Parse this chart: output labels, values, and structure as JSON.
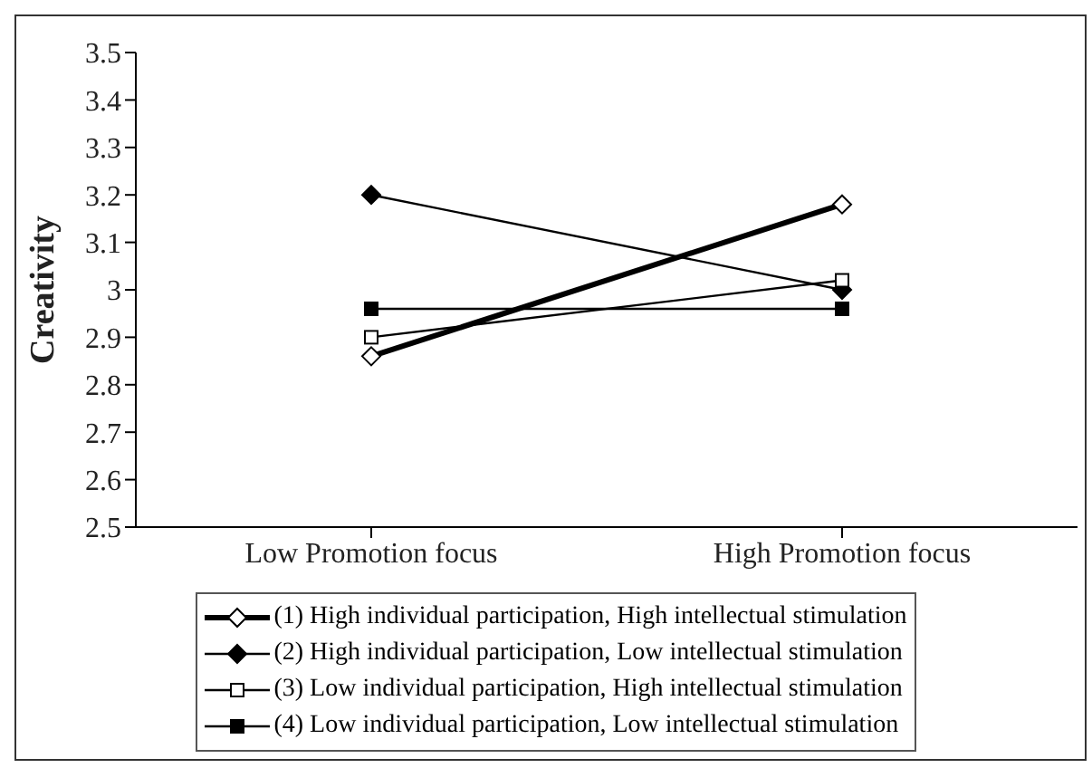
{
  "chart_data": {
    "type": "line",
    "ylabel": "Creativity",
    "categories": [
      "Low Promotion focus",
      "High Promotion focus"
    ],
    "series": [
      {
        "name": "(1) High individual participation, High intellectual stimulation",
        "color": "#000000",
        "values": [
          2.86,
          3.18
        ],
        "marker": "diamond"
      },
      {
        "name": "(2) High individual participation, Low intellectual stimulation",
        "color": "#000000",
        "values": [
          3.2,
          3.0
        ],
        "marker": "diamond"
      },
      {
        "name": "(3) Low individual participation, High intellectual stimulation",
        "color": "#000000",
        "values": [
          2.9,
          3.02
        ],
        "marker": "square"
      },
      {
        "name": "(4) Low individual participation, Low intellectual stimulation",
        "color": "#000000",
        "values": [
          2.96,
          2.96
        ],
        "marker": "square"
      }
    ],
    "ylim": [
      2.5,
      3.5
    ],
    "yticks": [
      2.5,
      2.6,
      2.7,
      2.8,
      2.9,
      3,
      3.1,
      3.2,
      3.3,
      3.4,
      3.5
    ],
    "grid": false,
    "legend": "bottom"
  }
}
